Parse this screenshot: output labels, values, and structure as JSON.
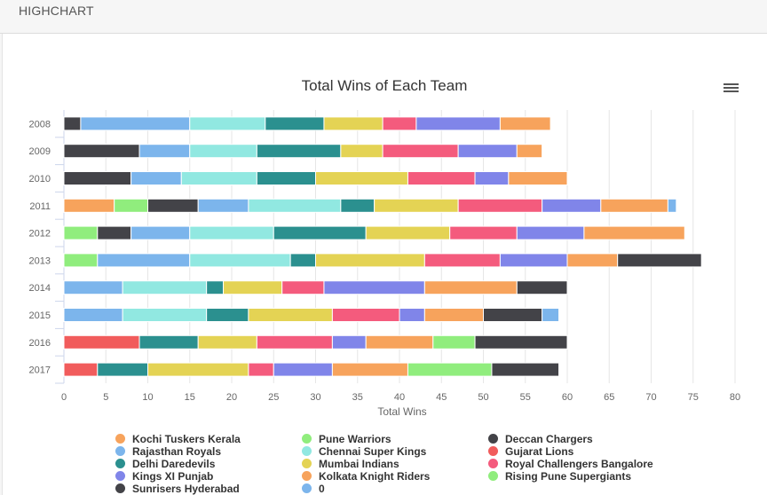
{
  "app": {
    "title": "HIGHCHART"
  },
  "menu": {
    "icon": "hamburger-menu-icon"
  },
  "chart_data": {
    "type": "bar",
    "stacked": true,
    "orientation": "horizontal",
    "title": "Total Wins of Each Team",
    "xlabel": "Total Wins",
    "xlim": [
      0,
      80
    ],
    "x_ticks": [
      "0",
      "5",
      "10",
      "15",
      "20",
      "25",
      "30",
      "35",
      "40",
      "45",
      "50",
      "55",
      "60",
      "65",
      "70",
      "75",
      "80"
    ],
    "grid": true,
    "legend_position": "bottom",
    "categories": [
      "2008",
      "2009",
      "2010",
      "2011",
      "2012",
      "2013",
      "2014",
      "2015",
      "2016",
      "2017"
    ],
    "series": [
      {
        "name": "Kochi Tuskers Kerala",
        "color": "#f7a35c",
        "values": [
          0,
          0,
          0,
          6,
          0,
          0,
          0,
          0,
          0,
          0
        ]
      },
      {
        "name": "Pune Warriors",
        "color": "#90ed7d",
        "values": [
          0,
          0,
          0,
          4,
          4,
          4,
          0,
          0,
          0,
          0
        ]
      },
      {
        "name": "Deccan Chargers",
        "color": "#434348",
        "values": [
          2,
          9,
          8,
          6,
          4,
          0,
          0,
          0,
          0,
          0
        ]
      },
      {
        "name": "Rajasthan Royals",
        "color": "#7cb5ec",
        "values": [
          13,
          6,
          6,
          6,
          7,
          11,
          7,
          7,
          0,
          0
        ]
      },
      {
        "name": "Chennai Super Kings",
        "color": "#91e8e1",
        "values": [
          9,
          8,
          9,
          11,
          10,
          12,
          10,
          10,
          0,
          0
        ]
      },
      {
        "name": "Gujarat Lions",
        "color": "#f15c5c",
        "values": [
          0,
          0,
          0,
          0,
          0,
          0,
          0,
          0,
          9,
          4
        ]
      },
      {
        "name": "Delhi Daredevils",
        "color": "#2b908f",
        "values": [
          7,
          10,
          7,
          4,
          11,
          3,
          2,
          5,
          7,
          6
        ]
      },
      {
        "name": "Mumbai Indians",
        "color": "#e4d354",
        "values": [
          7,
          5,
          11,
          10,
          10,
          13,
          7,
          10,
          7,
          12
        ]
      },
      {
        "name": "Royal Challengers Bangalore",
        "color": "#f45b7d",
        "values": [
          4,
          9,
          8,
          10,
          8,
          9,
          5,
          8,
          9,
          3
        ]
      },
      {
        "name": "Kings XI Punjab",
        "color": "#8085e9",
        "values": [
          10,
          7,
          4,
          7,
          8,
          8,
          12,
          3,
          4,
          7
        ]
      },
      {
        "name": "Kolkata Knight Riders",
        "color": "#f7a35c",
        "values": [
          6,
          3,
          7,
          8,
          12,
          6,
          11,
          7,
          8,
          9
        ]
      },
      {
        "name": "Rising Pune Supergiants",
        "color": "#90ed7d",
        "values": [
          0,
          0,
          0,
          0,
          0,
          0,
          0,
          0,
          5,
          10
        ]
      },
      {
        "name": "Sunrisers Hyderabad",
        "color": "#434348",
        "values": [
          0,
          0,
          0,
          0,
          0,
          10,
          6,
          7,
          11,
          8
        ]
      },
      {
        "name": "0",
        "color": "#7cb5ec",
        "values": [
          0,
          0,
          0,
          1,
          0,
          0,
          0,
          2,
          0,
          0
        ]
      }
    ]
  }
}
